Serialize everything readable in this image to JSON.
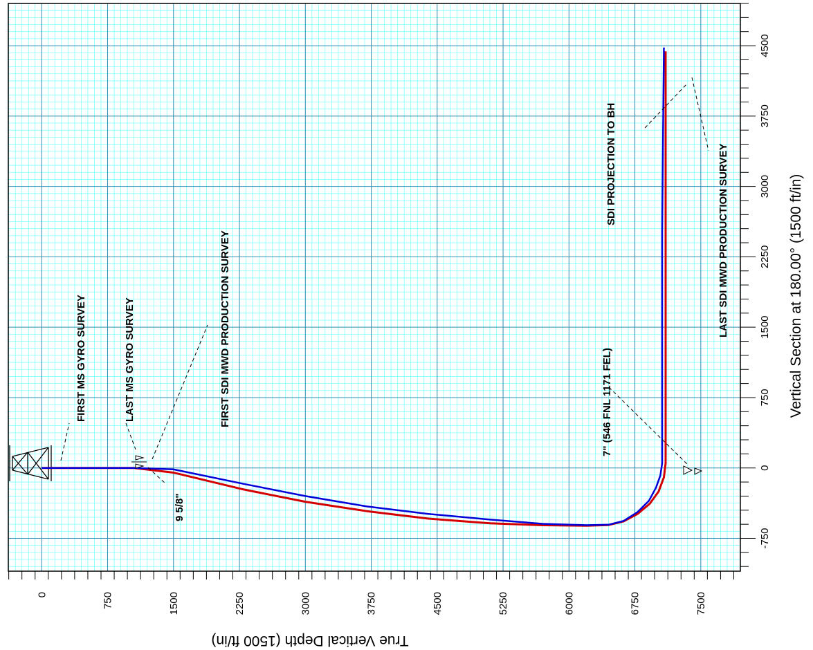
{
  "chart_data": {
    "type": "line",
    "orientation": "rotated-90-ccw",
    "title": "",
    "xlabel": "Vertical Section at 180.00° (1500 ft/in)",
    "ylabel": "True Vertical Depth (1500 ft/in)",
    "xlim": [
      -1100,
      4950
    ],
    "ylim": [
      -380,
      7950
    ],
    "x_ticks": [
      -750,
      0,
      750,
      1500,
      2250,
      3000,
      3750,
      4500
    ],
    "y_ticks": [
      0,
      750,
      1500,
      2250,
      3000,
      3750,
      4500,
      5250,
      6000,
      6750,
      7500
    ],
    "grid": true,
    "grid_colors": {
      "minor": "#7fffff",
      "major": "#2a8fb0"
    },
    "series": [
      {
        "color": "#d40000",
        "points": [
          [
            0,
            0
          ],
          [
            0,
            800
          ],
          [
            0,
            950
          ],
          [
            0,
            1050
          ],
          [
            -50,
            1500
          ],
          [
            -230,
            2300
          ],
          [
            -360,
            3000
          ],
          [
            -460,
            3700
          ],
          [
            -540,
            4400
          ],
          [
            -590,
            5100
          ],
          [
            -610,
            5700
          ],
          [
            -615,
            6200
          ],
          [
            -608,
            6450
          ],
          [
            -570,
            6620
          ],
          [
            -490,
            6780
          ],
          [
            -380,
            6920
          ],
          [
            -250,
            7020
          ],
          [
            -100,
            7080
          ],
          [
            50,
            7100
          ],
          [
            500,
            7100
          ],
          [
            1500,
            7100
          ],
          [
            2500,
            7100
          ],
          [
            3500,
            7100
          ],
          [
            4440,
            7100
          ]
        ]
      },
      {
        "color": "#0000d8",
        "points": [
          [
            0,
            0
          ],
          [
            0,
            800
          ],
          [
            0,
            950
          ],
          [
            0,
            1050
          ],
          [
            -15,
            1500
          ],
          [
            -170,
            2300
          ],
          [
            -300,
            3000
          ],
          [
            -410,
            3700
          ],
          [
            -490,
            4400
          ],
          [
            -550,
            5100
          ],
          [
            -595,
            5700
          ],
          [
            -610,
            6200
          ],
          [
            -605,
            6450
          ],
          [
            -565,
            6620
          ],
          [
            -470,
            6780
          ],
          [
            -350,
            6910
          ],
          [
            -210,
            6990
          ],
          [
            -80,
            7040
          ],
          [
            50,
            7060
          ],
          [
            500,
            7060
          ],
          [
            1500,
            7060
          ],
          [
            2500,
            7060
          ],
          [
            3500,
            7070
          ],
          [
            4480,
            7080
          ]
        ]
      }
    ],
    "annotations": [
      {
        "label": "FIRST MS GYRO SURVEY"
      },
      {
        "label": "LAST MS GYRO SURVEY"
      },
      {
        "label": "FIRST SDI MWD PRODUCTION SURVEY"
      },
      {
        "label": "9 5/8\""
      },
      {
        "label": "7\" (546 FNL 1171 FEL)"
      },
      {
        "label": "SDI PROJECTION TO BH"
      },
      {
        "label": "LAST SDI MWD PRODUCTION SURVEY"
      }
    ]
  }
}
